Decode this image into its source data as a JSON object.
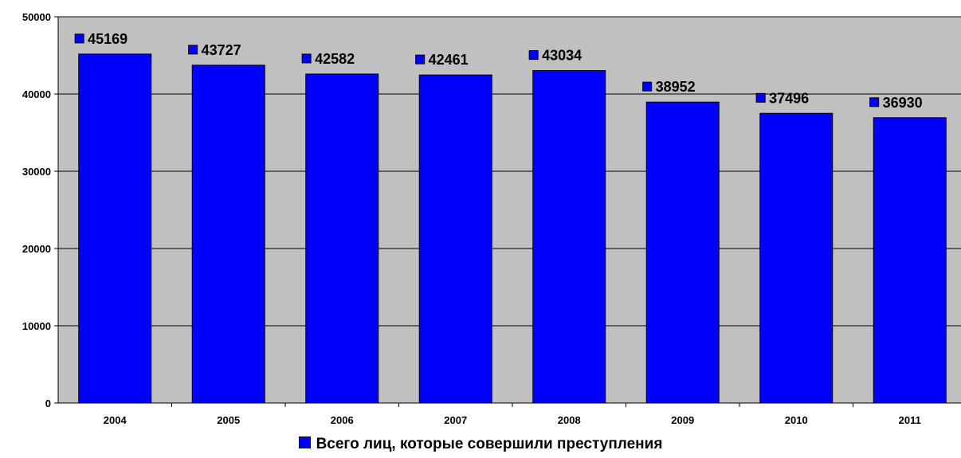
{
  "chart_data": {
    "type": "bar",
    "categories": [
      "2004",
      "2005",
      "2006",
      "2007",
      "2008",
      "2009",
      "2010",
      "2011"
    ],
    "series": [
      {
        "name": "Всего лиц, которые совершили преступления",
        "values": [
          45169,
          43727,
          42582,
          42461,
          43034,
          38952,
          37496,
          36930
        ],
        "color": "#0000ff"
      }
    ],
    "data_labels": [
      "45169",
      "43727",
      "42582",
      "42461",
      "43034",
      "38952",
      "37496",
      "36930"
    ],
    "y_ticks": [
      "0",
      "10000",
      "20000",
      "30000",
      "40000",
      "50000"
    ],
    "ylim": [
      0,
      50000
    ],
    "grid": true,
    "plot_background": "#c0c0c0",
    "legend_position": "bottom",
    "title": "",
    "xlabel": "",
    "ylabel": ""
  }
}
